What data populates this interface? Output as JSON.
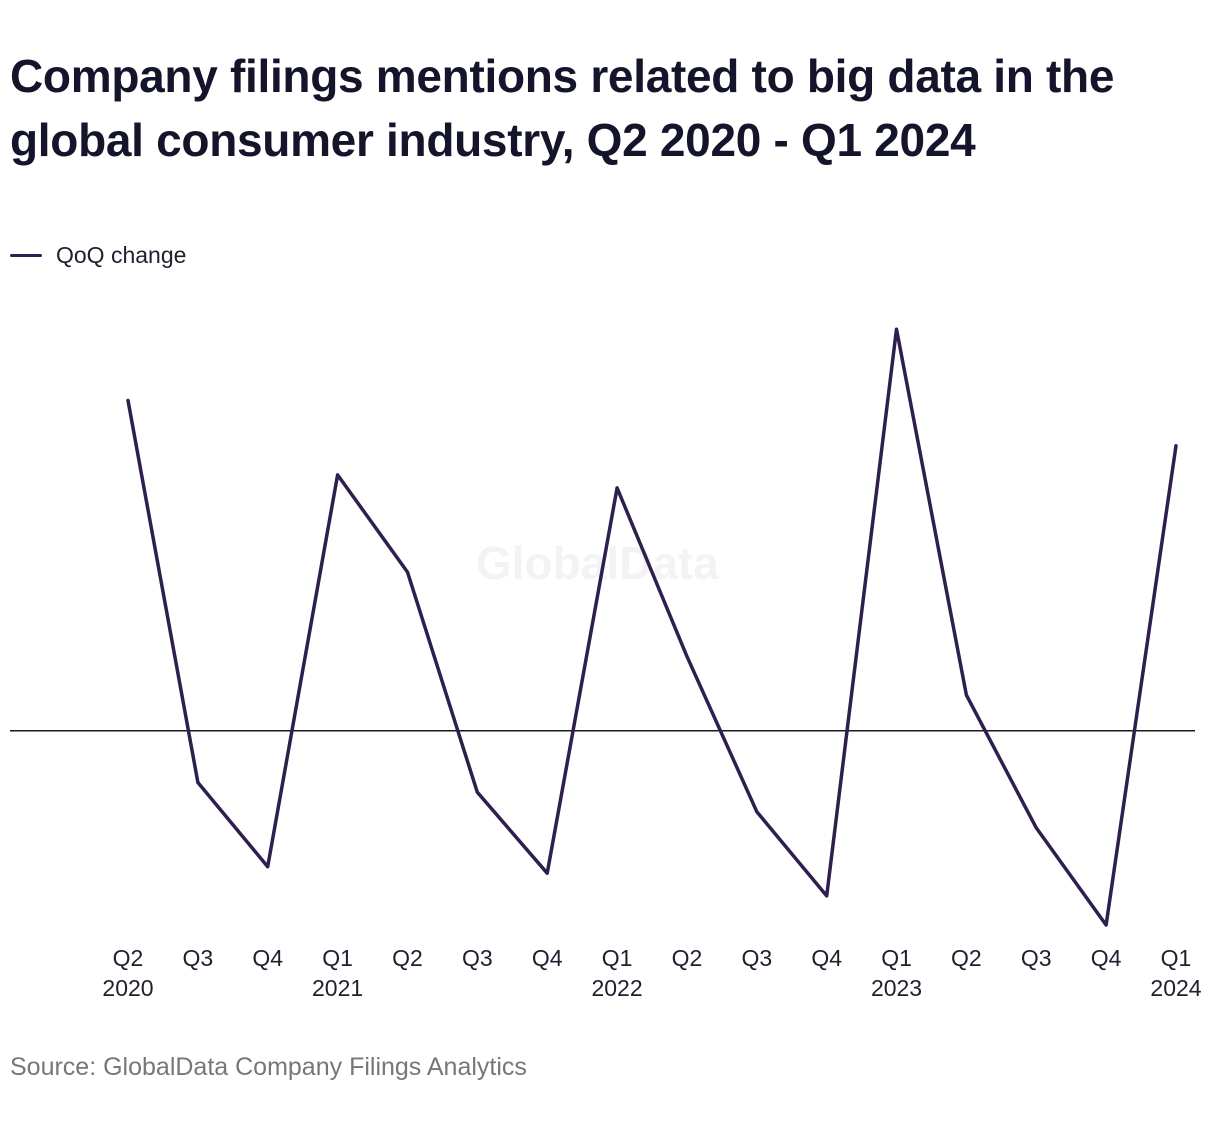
{
  "title": "Company filings mentions related to big data in the global consumer industry, Q2 2020 - Q1 2024",
  "watermark": "GlobalData",
  "source": "Source: GlobalData Company Filings Analytics",
  "colors": {
    "line": "#2e1f4f",
    "zero_line": "#1a1a1a",
    "text": "#14142b",
    "source": "#777777"
  },
  "chart_data": {
    "type": "line",
    "title": "Company filings mentions related to big data in the global consumer industry, Q2 2020 - Q1 2024",
    "xlabel": "",
    "ylabel": "",
    "grid": false,
    "legend_position": "top-left",
    "y_axis_labels_shown": false,
    "x_ticks": [
      {
        "q": "Q2",
        "year": "2020"
      },
      {
        "q": "Q3",
        "year": ""
      },
      {
        "q": "Q4",
        "year": ""
      },
      {
        "q": "Q1",
        "year": "2021"
      },
      {
        "q": "Q2",
        "year": ""
      },
      {
        "q": "Q3",
        "year": ""
      },
      {
        "q": "Q4",
        "year": ""
      },
      {
        "q": "Q1",
        "year": "2022"
      },
      {
        "q": "Q2",
        "year": ""
      },
      {
        "q": "Q3",
        "year": ""
      },
      {
        "q": "Q4",
        "year": ""
      },
      {
        "q": "Q1",
        "year": "2023"
      },
      {
        "q": "Q2",
        "year": ""
      },
      {
        "q": "Q3",
        "year": ""
      },
      {
        "q": "Q4",
        "year": ""
      },
      {
        "q": "Q1",
        "year": "2024"
      }
    ],
    "ylim": [
      -0.6,
      1.25
    ],
    "series": [
      {
        "name": "QoQ change",
        "values": [
          1.02,
          -0.16,
          -0.42,
          0.79,
          0.49,
          -0.19,
          -0.44,
          0.75,
          0.23,
          -0.25,
          -0.51,
          1.24,
          0.11,
          -0.3,
          -0.6,
          0.88
        ]
      }
    ]
  }
}
